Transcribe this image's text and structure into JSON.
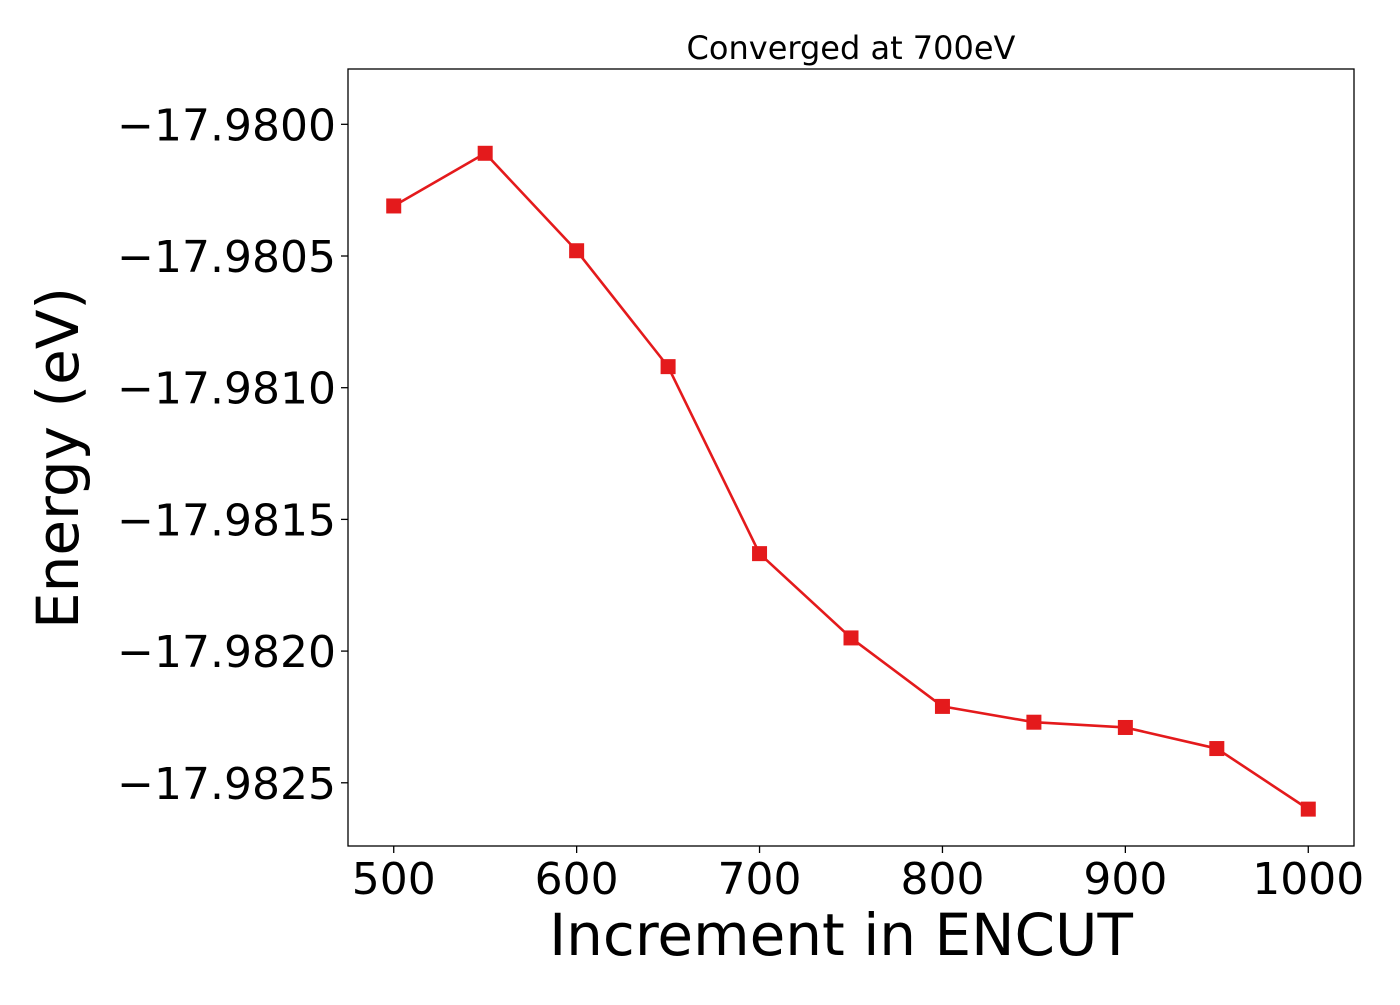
{
  "chart_data": {
    "type": "line",
    "title": "Converged at 700eV",
    "xlabel": "Increment in ENCUT",
    "ylabel": "Energy (eV)",
    "xlim": [
      475,
      1025
    ],
    "ylim": [
      -17.98274,
      -17.97979
    ],
    "xticks": [
      500,
      600,
      700,
      800,
      900,
      1000
    ],
    "xtick_labels": [
      "500",
      "600",
      "700",
      "800",
      "900",
      "1000"
    ],
    "yticks": [
      -17.98,
      -17.9805,
      -17.981,
      -17.9815,
      -17.982,
      -17.9825
    ],
    "ytick_labels": [
      "−17.9800",
      "−17.9805",
      "−17.9810",
      "−17.9815",
      "−17.9820",
      "−17.9825"
    ],
    "grid": false,
    "series": [
      {
        "color": "#e41a1c",
        "marker": "square",
        "x": [
          500,
          550,
          600,
          650,
          700,
          750,
          800,
          850,
          900,
          950,
          1000
        ],
        "y": [
          -17.98031,
          -17.98011,
          -17.98048,
          -17.98092,
          -17.98163,
          -17.98195,
          -17.98221,
          -17.98227,
          -17.98229,
          -17.98237,
          -17.9826
        ]
      }
    ]
  }
}
